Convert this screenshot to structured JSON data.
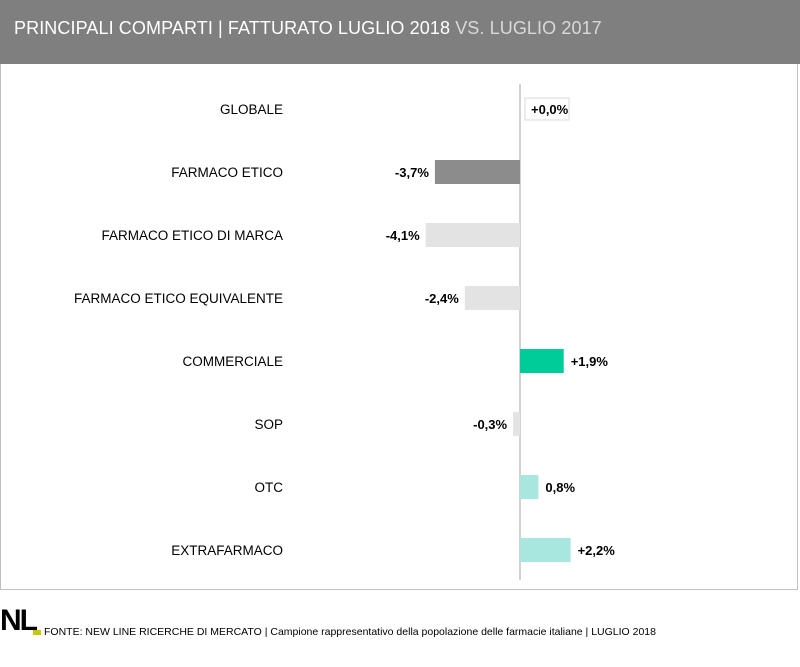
{
  "header": {
    "title_main": "PRINCIPALI COMPARTI | FATTURATO LUGLIO 2018",
    "title_sub": "VS. LUGLIO 2017"
  },
  "footer": {
    "logo": "NL",
    "source": "FONTE: NEW LINE RICERCHE DI MERCATO | Campione rappresentativo della popolazione delle farmacie italiane | LUGLIO 2018"
  },
  "chart_data": {
    "type": "bar",
    "orientation": "horizontal",
    "categories": [
      "GLOBALE",
      "FARMACO ETICO",
      "FARMACO ETICO DI MARCA",
      "FARMACO ETICO EQUIVALENTE",
      "COMMERCIALE",
      "SOP",
      "OTC",
      "EXTRAFARMACO"
    ],
    "values": [
      0.0,
      -3.7,
      -4.1,
      -2.4,
      1.9,
      -0.3,
      0.8,
      2.2
    ],
    "labels": [
      "+0,0%",
      "-3,7%",
      "-4,1%",
      "-2,4%",
      "+1,9%",
      "-0,3%",
      "0,8%",
      "+2,2%"
    ],
    "colors": [
      "#ffffff",
      "#8c8c8c",
      "#e3e3e3",
      "#e3e3e3",
      "#00cc99",
      "#e3e3e3",
      "#a8e6e0",
      "#a8e6e0"
    ],
    "label_boxed": [
      true,
      false,
      false,
      false,
      false,
      false,
      false,
      false
    ],
    "unit": "%",
    "grid": false
  }
}
